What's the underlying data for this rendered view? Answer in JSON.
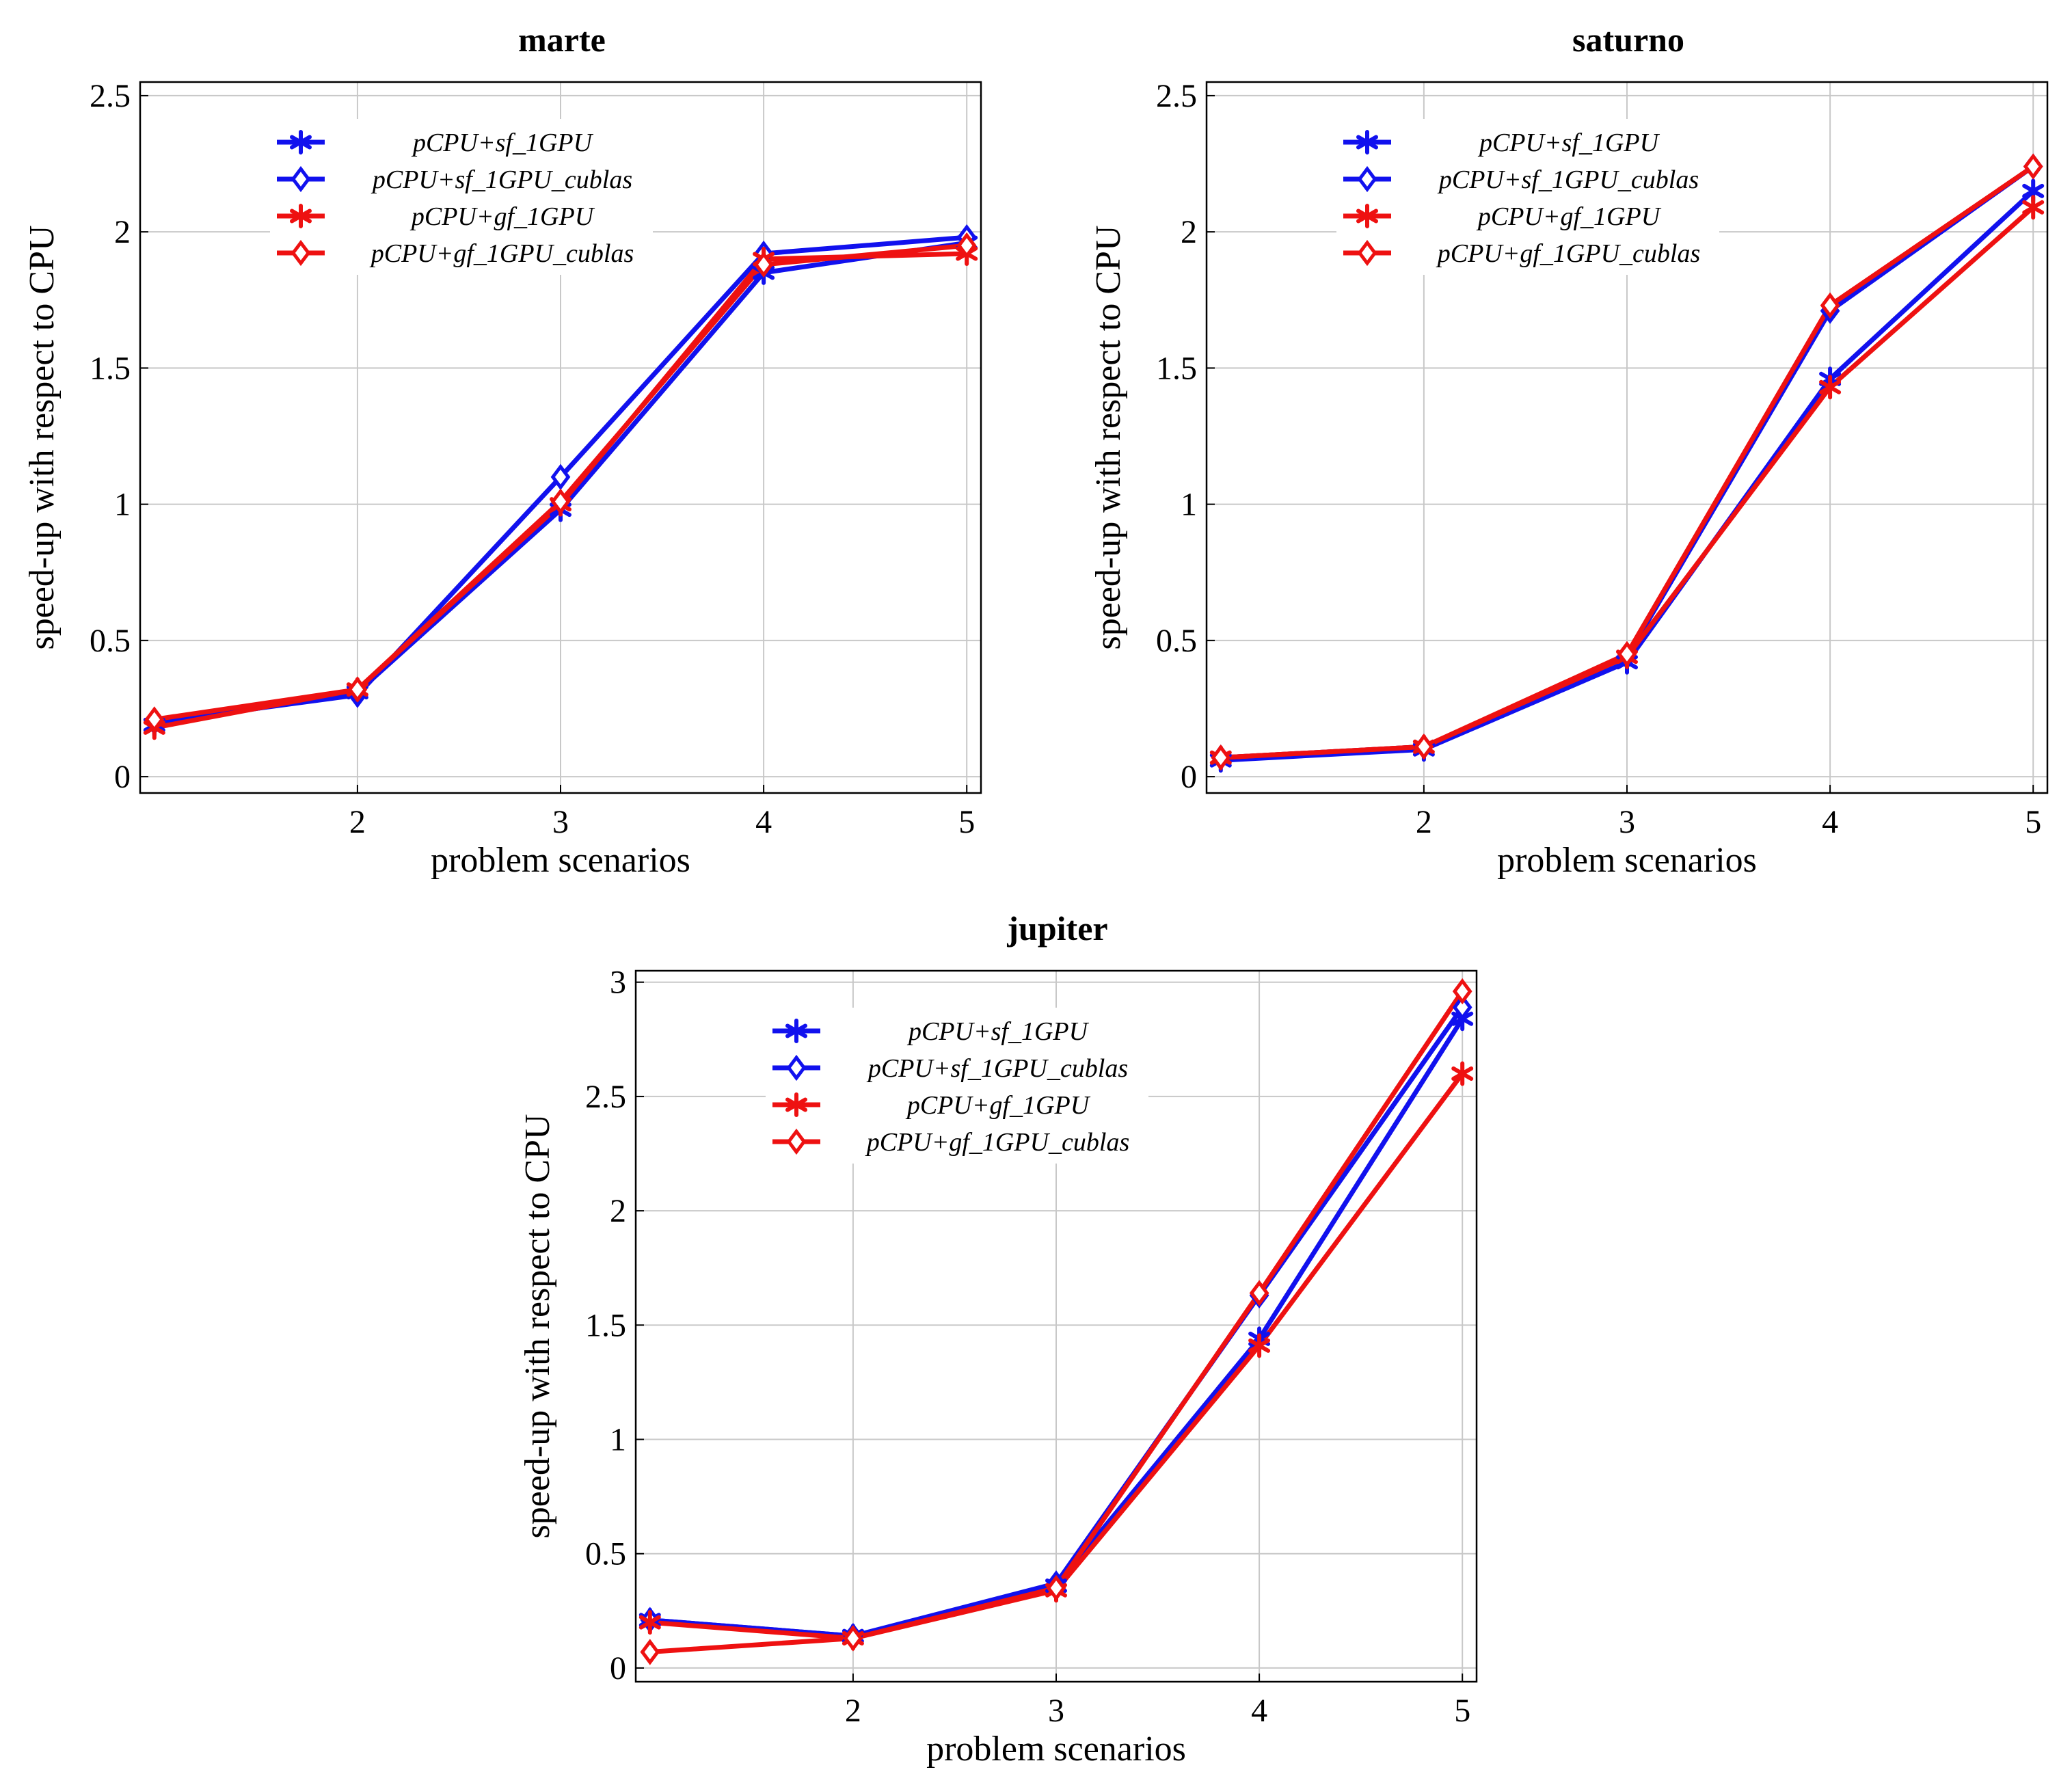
{
  "colors": {
    "blue": "#1111ee",
    "red": "#ee1111"
  },
  "chart_data": [
    {
      "type": "line",
      "title": "marte",
      "xlabel": "problem scenarios",
      "ylabel": "speed-up with respect to CPU",
      "x": [
        1,
        2,
        3,
        4,
        5
      ],
      "xticks": [
        2,
        3,
        4,
        5
      ],
      "xlim": [
        0.93,
        5.07
      ],
      "ylim": [
        -0.06,
        2.55
      ],
      "yticks": [
        0,
        0.5,
        1,
        1.5,
        2,
        2.5
      ],
      "ytick_labels": [
        "0",
        "0.5",
        "1",
        "1.5",
        "2",
        "2.5"
      ],
      "grid": true,
      "legend": "upper-center",
      "series": [
        {
          "name": "pCPU+sf_1GPU",
          "color": "blue",
          "marker": "star",
          "values": [
            0.19,
            0.31,
            0.98,
            1.85,
            1.96
          ]
        },
        {
          "name": "pCPU+sf_1GPU_cublas",
          "color": "blue",
          "marker": "diamond",
          "values": [
            0.2,
            0.3,
            1.1,
            1.92,
            1.98
          ]
        },
        {
          "name": "pCPU+gf_1GPU",
          "color": "red",
          "marker": "star",
          "values": [
            0.18,
            0.32,
            1.0,
            1.9,
            1.92
          ]
        },
        {
          "name": "pCPU+gf_1GPU_cublas",
          "color": "red",
          "marker": "diamond",
          "values": [
            0.21,
            0.32,
            1.01,
            1.88,
            1.95
          ]
        }
      ]
    },
    {
      "type": "line",
      "title": "saturno",
      "xlabel": "problem scenarios",
      "ylabel": "speed-up with respect to CPU",
      "x": [
        1,
        2,
        3,
        4,
        5
      ],
      "xticks": [
        2,
        3,
        4,
        5
      ],
      "xlim": [
        0.93,
        5.07
      ],
      "ylim": [
        -0.06,
        2.55
      ],
      "yticks": [
        0,
        0.5,
        1,
        1.5,
        2,
        2.5
      ],
      "ytick_labels": [
        "0",
        "0.5",
        "1",
        "1.5",
        "2",
        "2.5"
      ],
      "grid": true,
      "legend": "upper-center",
      "series": [
        {
          "name": "pCPU+sf_1GPU",
          "color": "blue",
          "marker": "star",
          "values": [
            0.06,
            0.1,
            0.42,
            1.46,
            2.15
          ]
        },
        {
          "name": "pCPU+sf_1GPU_cublas",
          "color": "blue",
          "marker": "diamond",
          "values": [
            0.07,
            0.11,
            0.44,
            1.71,
            2.24
          ]
        },
        {
          "name": "pCPU+gf_1GPU",
          "color": "red",
          "marker": "star",
          "values": [
            0.07,
            0.11,
            0.44,
            1.43,
            2.09
          ]
        },
        {
          "name": "pCPU+gf_1GPU_cublas",
          "color": "red",
          "marker": "diamond",
          "values": [
            0.07,
            0.11,
            0.45,
            1.73,
            2.24
          ]
        }
      ]
    },
    {
      "type": "line",
      "title": "jupiter",
      "xlabel": "problem scenarios",
      "ylabel": "speed-up with respect to CPU",
      "x": [
        1,
        2,
        3,
        4,
        5
      ],
      "xticks": [
        2,
        3,
        4,
        5
      ],
      "xlim": [
        0.93,
        5.07
      ],
      "ylim": [
        -0.06,
        3.05
      ],
      "yticks": [
        0,
        0.5,
        1,
        1.5,
        2,
        2.5,
        3
      ],
      "ytick_labels": [
        "0",
        "0.5",
        "1",
        "1.5",
        "2",
        "2.5",
        "3"
      ],
      "grid": true,
      "legend": "upper-center",
      "series": [
        {
          "name": "pCPU+sf_1GPU",
          "color": "blue",
          "marker": "star",
          "values": [
            0.21,
            0.14,
            0.36,
            1.44,
            2.84
          ]
        },
        {
          "name": "pCPU+sf_1GPU_cublas",
          "color": "blue",
          "marker": "diamond",
          "values": [
            0.21,
            0.14,
            0.37,
            1.63,
            2.89
          ]
        },
        {
          "name": "pCPU+gf_1GPU",
          "color": "red",
          "marker": "star",
          "values": [
            0.2,
            0.13,
            0.34,
            1.41,
            2.6
          ]
        },
        {
          "name": "pCPU+gf_1GPU_cublas",
          "color": "red",
          "marker": "diamond",
          "values": [
            0.07,
            0.13,
            0.35,
            1.64,
            2.96
          ]
        }
      ]
    }
  ]
}
